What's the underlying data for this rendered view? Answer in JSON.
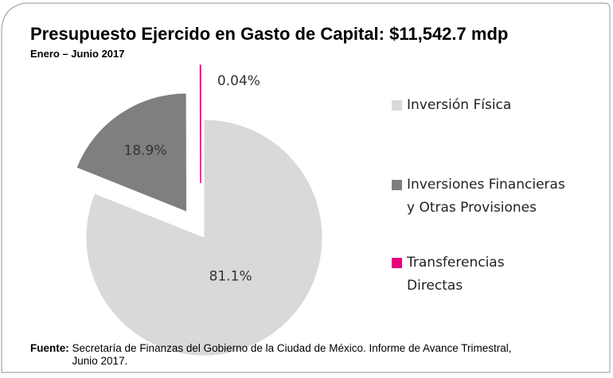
{
  "chart_data": {
    "type": "pie",
    "title": "Presupuesto Ejercido en Gasto de Capital: $11,542.7 mdp",
    "subtitle": "Enero – Junio 2017",
    "categories": [
      "Inversión Física",
      "Inversiones Financieras y Otras Provisiones",
      "Transferencias Directas"
    ],
    "values": [
      81.1,
      18.9,
      0.04
    ],
    "value_labels": [
      "81.1%",
      "18.9%",
      "0.04%"
    ],
    "colors": [
      "#d9d9d9",
      "#7f7f7f",
      "#e6007e"
    ],
    "source": {
      "label": "Fuente:",
      "text": "Secretaría de Finanzas del Gobierno de la Ciudad de México. Informe de Avance Trimestral, Junio 2017."
    }
  }
}
